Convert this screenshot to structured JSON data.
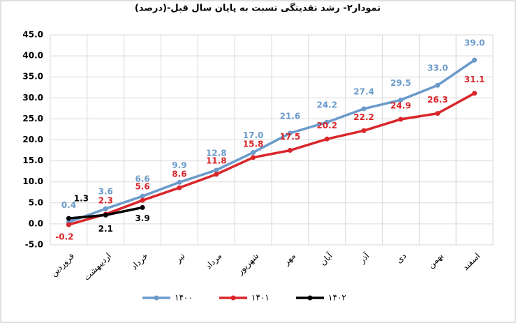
{
  "chart_data": {
    "type": "line",
    "title": "نمودار۲- رشد نقدینگی نسبت به پایان سال قبل-(درصد)",
    "categories": [
      "فروردین",
      "اردیبهشت",
      "خرداد",
      "تیر",
      "مرداد",
      "شهریور",
      "مهر",
      "آبان",
      "آذر",
      "دی",
      "بهمن",
      "اسفند"
    ],
    "series": [
      {
        "name": "۱۴۰۰",
        "color": "#6b9bcb",
        "values": [
          0.4,
          3.6,
          6.6,
          9.9,
          12.8,
          17.0,
          21.6,
          24.2,
          27.4,
          29.5,
          33.0,
          39.0
        ],
        "value_labels": [
          "0.4",
          "3.6",
          "6.6",
          "9.9",
          "12.8",
          "17.0",
          "21.6",
          "24.2",
          "27.4",
          "29.5",
          "33.0",
          "39.0"
        ]
      },
      {
        "name": "۱۴۰۱",
        "color": "#d9262a",
        "values": [
          -0.2,
          2.3,
          5.6,
          8.6,
          11.8,
          15.8,
          17.5,
          20.2,
          22.2,
          24.9,
          26.3,
          31.1
        ],
        "value_labels": [
          "-0.2",
          "2.3",
          "5.6",
          "8.6",
          "11.8",
          "15.8",
          "17.5",
          "20.2",
          "22.2",
          "24.9",
          "26.3",
          "31.1"
        ]
      },
      {
        "name": "۱۴۰۲",
        "color": "#000000",
        "values": [
          1.3,
          2.1,
          3.9,
          null,
          null,
          null,
          null,
          null,
          null,
          null,
          null,
          null
        ],
        "value_labels": [
          "1.3",
          "2.1",
          "3.9",
          null,
          null,
          null,
          null,
          null,
          null,
          null,
          null,
          null
        ]
      }
    ],
    "ylim": [
      -5,
      45
    ],
    "yticks": [
      {
        "value": -5,
        "label": "-5.0"
      },
      {
        "value": 0,
        "label": "0.0"
      },
      {
        "value": 5,
        "label": "5.0"
      },
      {
        "value": 10,
        "label": "10.0"
      },
      {
        "value": 15,
        "label": "15.0"
      },
      {
        "value": 20,
        "label": "20.0"
      },
      {
        "value": 25,
        "label": "25.0"
      },
      {
        "value": 30,
        "label": "30.0"
      },
      {
        "value": 35,
        "label": "35.0"
      },
      {
        "value": 40,
        "label": "40.0"
      },
      {
        "value": 45,
        "label": "45.0"
      }
    ],
    "grid": true,
    "legend": "bottom"
  }
}
